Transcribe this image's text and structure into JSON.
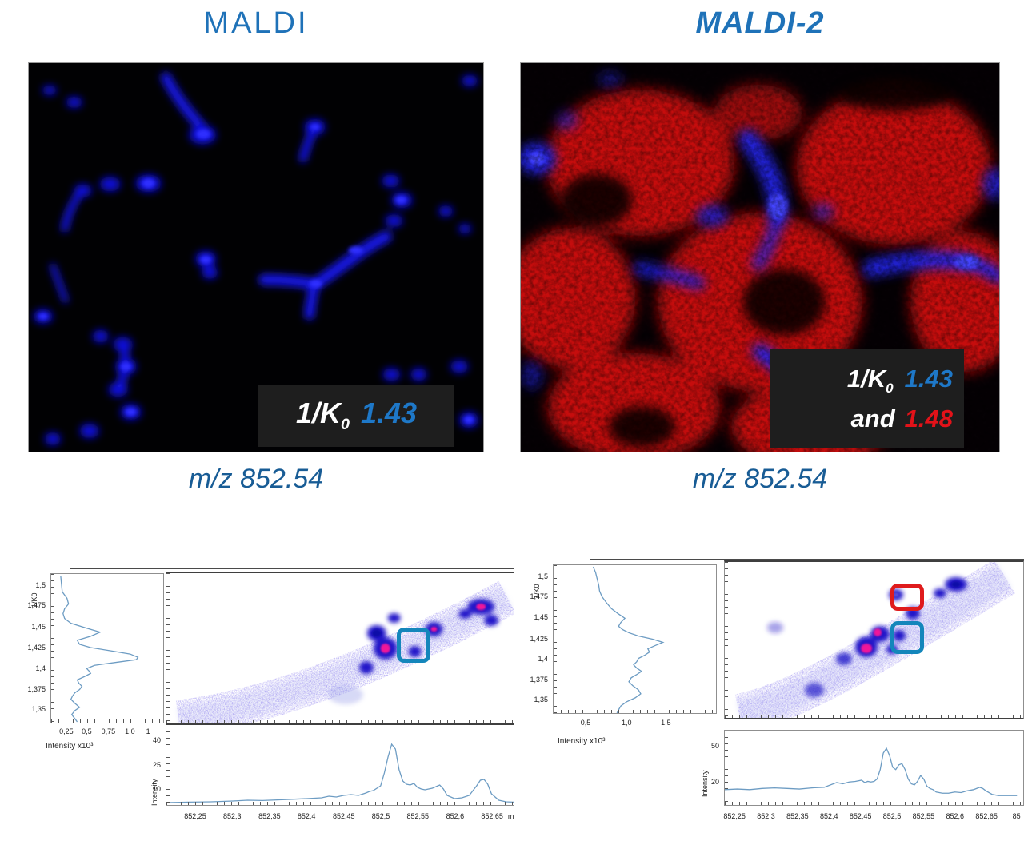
{
  "header": {
    "left_title": "MALDI",
    "right_title": "MALDI-2"
  },
  "captions": {
    "left": "m/z 852.54",
    "right": "m/z 852.54"
  },
  "overlays": {
    "left": {
      "k": "1/K",
      "sub": "0",
      "value": "1.43"
    },
    "right": {
      "k": "1/K",
      "sub": "0",
      "value1": "1.43",
      "and": "and",
      "value2": "1.48"
    }
  },
  "colors": {
    "title_blue": "#1f72b8",
    "caption_blue": "#185c95",
    "value_blue": "#1e78c8",
    "value_red": "#e31219",
    "overlay_bg": "#1e1e1e",
    "plot_line": "#6d9cc3",
    "box_blue": "#1486bb",
    "box_red": "#df1b1c"
  },
  "chart_data": [
    {
      "name": "maldi-mobilogram",
      "type": "line",
      "axis_label": "1/K0",
      "xlabel": "Intensity x10³",
      "xlim": [
        0,
        1.42
      ],
      "ylim": [
        1.333,
        1.517
      ],
      "yticks": [
        {
          "label": "1,5",
          "pos": 0.078
        },
        {
          "label": "1,475",
          "pos": 0.215
        },
        {
          "label": "1,45",
          "pos": 0.355
        },
        {
          "label": "1,425",
          "pos": 0.495
        },
        {
          "label": "1,4",
          "pos": 0.632
        },
        {
          "label": "1,375",
          "pos": 0.769
        },
        {
          "label": "1,35",
          "pos": 0.905
        }
      ],
      "xticks": [
        {
          "label": "0,25",
          "pos": 0.14
        },
        {
          "label": "0,5",
          "pos": 0.32
        },
        {
          "label": "0,75",
          "pos": 0.51
        },
        {
          "label": "1,0",
          "pos": 0.7
        },
        {
          "label": "1",
          "pos": 0.86
        }
      ],
      "x": [
        0.12,
        0.13,
        0.14,
        0.2,
        0.22,
        0.17,
        0.15,
        0.17,
        0.25,
        0.45,
        0.62,
        0.5,
        0.33,
        0.36,
        0.5,
        0.75,
        1.0,
        1.1,
        1.08,
        0.85,
        0.55,
        0.45,
        0.48,
        0.5,
        0.42,
        0.33,
        0.35,
        0.39,
        0.36,
        0.3,
        0.27,
        0.25,
        0.3,
        0.36,
        0.3,
        0.26,
        0.3,
        0.33
      ],
      "y": [
        1.515,
        1.505,
        1.495,
        1.487,
        1.48,
        1.474,
        1.468,
        1.462,
        1.456,
        1.45,
        1.445,
        1.44,
        1.435,
        1.43,
        1.426,
        1.422,
        1.418,
        1.414,
        1.411,
        1.408,
        1.404,
        1.4,
        1.397,
        1.394,
        1.39,
        1.386,
        1.382,
        1.378,
        1.374,
        1.37,
        1.366,
        1.362,
        1.357,
        1.352,
        1.348,
        1.343,
        1.338,
        1.334
      ]
    },
    {
      "name": "maldi-spectrum",
      "type": "line",
      "ylabel": "Intensity",
      "xlim": [
        852.21,
        852.68
      ],
      "ylim": [
        0,
        46
      ],
      "yticks": [
        {
          "label": "40",
          "pos": 0.13
        },
        {
          "label": "25",
          "pos": 0.456
        },
        {
          "label": "10",
          "pos": 0.78
        }
      ],
      "xticks": [
        {
          "label": "852,25",
          "pos": 0.085
        },
        {
          "label": "852,3",
          "pos": 0.191
        },
        {
          "label": "852,35",
          "pos": 0.298
        },
        {
          "label": "852,4",
          "pos": 0.404
        },
        {
          "label": "852,45",
          "pos": 0.511
        },
        {
          "label": "852,5",
          "pos": 0.617
        },
        {
          "label": "852,55",
          "pos": 0.723
        },
        {
          "label": "852,6",
          "pos": 0.83
        },
        {
          "label": "852,65",
          "pos": 0.936
        },
        {
          "label": "m",
          "pos": 0.99
        }
      ],
      "x": [
        852.21,
        852.24,
        852.27,
        852.3,
        852.32,
        852.34,
        852.36,
        852.38,
        852.4,
        852.42,
        852.43,
        852.44,
        852.45,
        852.46,
        852.47,
        852.48,
        852.485,
        852.49,
        852.5,
        852.505,
        852.51,
        852.515,
        852.52,
        852.525,
        852.53,
        852.535,
        852.54,
        852.545,
        852.55,
        852.555,
        852.56,
        852.565,
        852.57,
        852.575,
        852.58,
        852.585,
        852.59,
        852.6,
        852.61,
        852.62,
        852.63,
        852.635,
        852.64,
        852.645,
        852.65,
        852.66,
        852.67,
        852.68
      ],
      "y": [
        1.5,
        1.8,
        2,
        2.5,
        3,
        2.8,
        3.2,
        3.6,
        4,
        4.5,
        5.5,
        5,
        6,
        6.5,
        6,
        7.5,
        8.5,
        9,
        12,
        20,
        30,
        38,
        35,
        22,
        15,
        13,
        12.5,
        13.5,
        11,
        10,
        9.5,
        10,
        10.5,
        11.5,
        12.5,
        10,
        6,
        4,
        4.5,
        6,
        12,
        15.5,
        16,
        13,
        7,
        3,
        2,
        1.8
      ]
    },
    {
      "name": "maldi2-mobilogram",
      "type": "line",
      "axis_label": "1/K0",
      "xlabel": "Intensity x10³",
      "xlim": [
        0.05,
        2.1
      ],
      "ylim": [
        1.333,
        1.517
      ],
      "yticks": [
        {
          "label": "1,5",
          "pos": 0.078
        },
        {
          "label": "1,475",
          "pos": 0.215
        },
        {
          "label": "1,45",
          "pos": 0.355
        },
        {
          "label": "1,425",
          "pos": 0.495
        },
        {
          "label": "1,4",
          "pos": 0.632
        },
        {
          "label": "1,375",
          "pos": 0.769
        },
        {
          "label": "1,35",
          "pos": 0.905
        }
      ],
      "xticks": [
        {
          "label": "0,5",
          "pos": 0.2
        },
        {
          "label": "1,0",
          "pos": 0.45
        },
        {
          "label": "1,5",
          "pos": 0.69
        }
      ],
      "x": [
        0.55,
        0.58,
        0.6,
        0.62,
        0.63,
        0.66,
        0.72,
        0.78,
        0.86,
        0.95,
        0.9,
        0.87,
        0.92,
        1.0,
        1.12,
        1.3,
        1.43,
        1.33,
        1.24,
        1.26,
        1.2,
        1.12,
        1.1,
        1.06,
        1.1,
        1.16,
        1.1,
        1.03,
        1.0,
        1.05,
        1.12,
        1.15,
        1.08,
        0.97,
        0.9,
        0.87,
        0.85
      ],
      "y": [
        1.515,
        1.508,
        1.5,
        1.492,
        1.485,
        1.478,
        1.47,
        1.463,
        1.457,
        1.451,
        1.446,
        1.441,
        1.437,
        1.433,
        1.429,
        1.425,
        1.421,
        1.417,
        1.413,
        1.409,
        1.405,
        1.401,
        1.397,
        1.393,
        1.389,
        1.385,
        1.381,
        1.377,
        1.372,
        1.367,
        1.362,
        1.357,
        1.352,
        1.347,
        1.342,
        1.337,
        1.333
      ]
    },
    {
      "name": "maldi2-spectrum",
      "type": "line",
      "ylabel": "Intensity",
      "xlim": [
        852.23,
        852.71
      ],
      "ylim": [
        0,
        63
      ],
      "yticks": [
        {
          "label": "50",
          "pos": 0.206
        },
        {
          "label": "20",
          "pos": 0.683
        }
      ],
      "xticks": [
        {
          "label": "852,25",
          "pos": 0.035
        },
        {
          "label": "852,3",
          "pos": 0.14
        },
        {
          "label": "852,35",
          "pos": 0.245
        },
        {
          "label": "852,4",
          "pos": 0.35
        },
        {
          "label": "852,45",
          "pos": 0.455
        },
        {
          "label": "852,5",
          "pos": 0.56
        },
        {
          "label": "852,55",
          "pos": 0.665
        },
        {
          "label": "852,6",
          "pos": 0.77
        },
        {
          "label": "852,65",
          "pos": 0.875
        },
        {
          "label": "85",
          "pos": 0.975
        }
      ],
      "x": [
        852.23,
        852.25,
        852.27,
        852.29,
        852.31,
        852.33,
        852.35,
        852.37,
        852.39,
        852.41,
        852.42,
        852.43,
        852.44,
        852.45,
        852.455,
        852.46,
        852.465,
        852.47,
        852.475,
        852.48,
        852.485,
        852.49,
        852.495,
        852.5,
        852.505,
        852.51,
        852.515,
        852.52,
        852.525,
        852.53,
        852.535,
        852.54,
        852.545,
        852.55,
        852.555,
        852.56,
        852.565,
        852.57,
        852.58,
        852.59,
        852.6,
        852.61,
        852.62,
        852.63,
        852.64,
        852.645,
        852.65,
        852.66,
        852.67,
        852.68,
        852.7
      ],
      "y": [
        13,
        13.5,
        13,
        14,
        14.5,
        14,
        13.5,
        14.5,
        15,
        19,
        18,
        19.5,
        20,
        21,
        19,
        20,
        19.5,
        20,
        22,
        30,
        44,
        48,
        42,
        32,
        30,
        34,
        35,
        30,
        22,
        18,
        17,
        20,
        25,
        22,
        16,
        14,
        13,
        11,
        10,
        10,
        11,
        10.5,
        12,
        13,
        15,
        14,
        12,
        9,
        8,
        8,
        8
      ]
    },
    {
      "name": "maldi-heatmap",
      "type": "heatmap",
      "xlim": [
        852.21,
        852.68
      ],
      "ylim": [
        1.333,
        1.517
      ],
      "rois": [
        {
          "color": "#1486bb"
        }
      ]
    },
    {
      "name": "maldi2-heatmap",
      "type": "heatmap",
      "xlim": [
        852.23,
        852.71
      ],
      "ylim": [
        1.333,
        1.517
      ],
      "rois": [
        {
          "color": "#df1b1c"
        },
        {
          "color": "#1486bb"
        }
      ]
    }
  ]
}
